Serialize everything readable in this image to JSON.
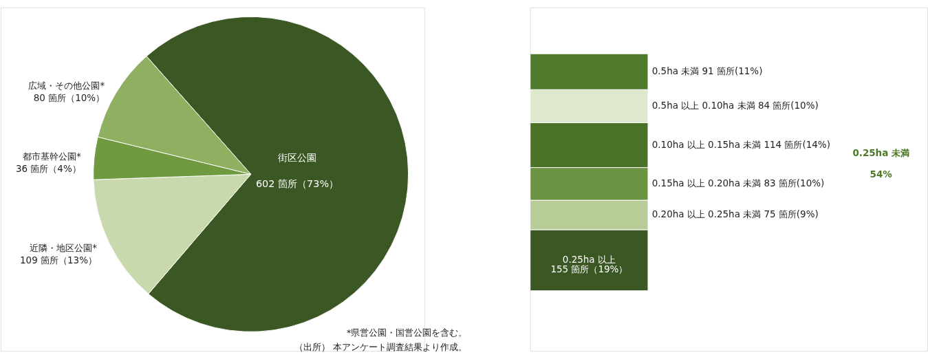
{
  "chart_data": [
    {
      "type": "pie",
      "categories": [
        "街区公園",
        "近隣・地区公園*",
        "都市基幹公園*",
        "広域・その他公園*"
      ],
      "values": [
        602,
        109,
        36,
        80
      ],
      "colors": [
        "#3b5723",
        "#c9d9ad",
        "#6f9a40",
        "#8fb060"
      ],
      "value_labels": [
        "602 箇所（73%）",
        "109 箇所（13%）",
        "36 箇所（4%）",
        "80 箇所（10%）"
      ],
      "annotations": [
        "*県営公園・国営公園を含む。",
        "（出所） 本アンケート調査結果より作成。"
      ]
    },
    {
      "type": "bar",
      "stacked": true,
      "categories": [
        null
      ],
      "series": [
        {
          "name": "0.25ha 以上",
          "color": "#3b5723",
          "values": [
            155
          ],
          "value_labels": [
            "155 箇所（19%）"
          ]
        },
        {
          "name": "0.20ha 以上 0.25ha 未満",
          "color": "#b8cc98",
          "values": [
            75
          ],
          "value_labels": [
            "75 箇所(9%)"
          ]
        },
        {
          "name": "0.15ha 以上 0.20ha 未満",
          "color": "#6b9442",
          "values": [
            83
          ],
          "value_labels": [
            "83 箇所(10%)"
          ]
        },
        {
          "name": "0.10ha 以上 0.15ha 未満",
          "color": "#4a7328",
          "values": [
            114
          ],
          "value_labels": [
            "114 箇所(14%)"
          ]
        },
        {
          "name": "0.5ha 以上 0.10ha 未満",
          "color": "#dde8cc",
          "values": [
            84
          ],
          "value_labels": [
            "84 箇所(10%)"
          ]
        },
        {
          "name": "0.5ha 未満",
          "color": "#4f7a2c",
          "values": [
            91
          ],
          "value_labels": [
            "91 箇所(11%)"
          ]
        }
      ],
      "annotations": [
        "0.25ha 未満\n54%"
      ]
    }
  ]
}
